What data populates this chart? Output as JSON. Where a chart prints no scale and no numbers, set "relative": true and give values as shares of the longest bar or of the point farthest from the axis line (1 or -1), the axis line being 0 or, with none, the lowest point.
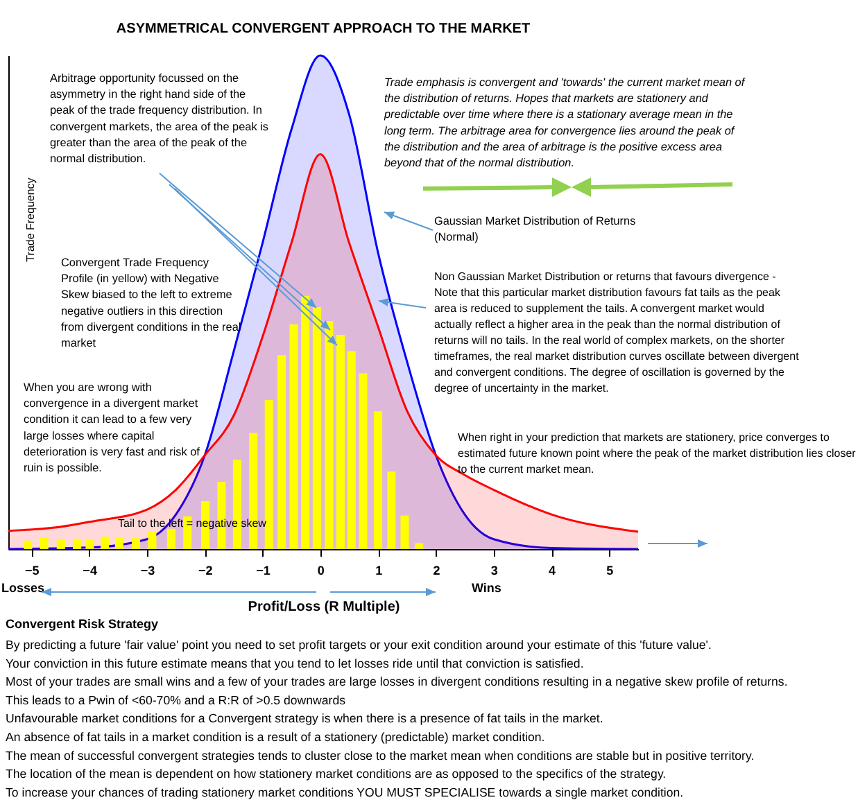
{
  "chart_data": {
    "type": "area",
    "title": "ASYMMETRICAL CONVERGENT APPROACH TO THE MARKET",
    "xlabel": "Profit/Loss (R Multiple)",
    "ylabel": "Trade Frequency",
    "relative": true,
    "grid": false,
    "xlim": [
      -5.4,
      5.5
    ],
    "xticks": [
      -5,
      -4,
      -3,
      -2,
      -1,
      0,
      1,
      2,
      3,
      4,
      5
    ],
    "series": [
      {
        "color": "#0000ff",
        "x": [
          -5.4,
          -4,
          -3,
          -2.5,
          -2,
          -1.5,
          -1,
          -0.5,
          0,
          0.5,
          1,
          1.5,
          2,
          2.5,
          3,
          4,
          5.5
        ],
        "values": [
          0,
          0.003,
          0.02,
          0.07,
          0.19,
          0.4,
          0.62,
          0.85,
          1,
          0.88,
          0.6,
          0.38,
          0.19,
          0.07,
          0.02,
          0.002,
          0
        ]
      },
      {
        "color": "#ff0000",
        "x": [
          -5.4,
          -4.5,
          -4,
          -3,
          -2.5,
          -2,
          -1.5,
          -1,
          -0.5,
          0,
          0.5,
          1,
          1.5,
          2,
          2.5,
          3,
          4,
          5.5
        ],
        "values": [
          0.037,
          0.045,
          0.055,
          0.08,
          0.12,
          0.19,
          0.27,
          0.43,
          0.62,
          0.8,
          0.62,
          0.45,
          0.28,
          0.19,
          0.15,
          0.12,
          0.07,
          0.035
        ]
      },
      {
        "type": "bar",
        "color": "#ffff00",
        "x": [
          -5.06,
          -4.78,
          -4.49,
          -4.21,
          -3.99,
          -3.73,
          -3.48,
          -3.19,
          -2.91,
          -2.58,
          -2.3,
          -1.99,
          -1.71,
          -1.44,
          -1.16,
          -0.89,
          -0.67,
          -0.46,
          -0.26,
          -0.06,
          0.15,
          0.35,
          0.54,
          0.74,
          1,
          1.23,
          1.46,
          1.71
        ],
        "values": [
          0.017,
          0.024,
          0.019,
          0.021,
          0.02,
          0.025,
          0.024,
          0.022,
          0.036,
          0.041,
          0.066,
          0.097,
          0.136,
          0.181,
          0.235,
          0.302,
          0.393,
          0.455,
          0.513,
          0.49,
          0.462,
          0.434,
          0.401,
          0.356,
          0.279,
          0.157,
          0.068,
          0.012
        ]
      }
    ],
    "annotations": [
      "Arbitrage opportunity focussed on the asymmetry in the right hand side of the peak of the trade frequency distribution. In convergent markets, the area of the peak is greater than the area of the peak of the normal distribution.",
      "Trade emphasis is convergent and 'towards' the current market mean of the distribution of returns. Hopes that markets are stationery and predictable over time where there is a stationary average mean in the long term. The arbitrage area for convergence lies around the peak of the distribution and the area of arbitrage is the positive excess area beyond that of the normal distribution.",
      "Gaussian Market Distribution of Returns (Normal)",
      "Convergent Trade Frequency Profile (in yellow) with Negative Skew biased to the left to extreme negative outliers in this direction from divergent conditions in the real market",
      "Non Gaussian Market Distribution or returns that favours divergence  - Note that this particular market distribution favours fat tails as the peak area is reduced to supplement the tails. A convergent market would actually reflect a higher area in the peak than the normal distribution of returns will no tails.  In the real world of complex markets, on the shorter timeframes, the real market distribution curves oscillate between divergent and convergent conditions. The degree of oscillation is governed by the degree of uncertainty in the market.",
      "When you are wrong with convergence in a divergent market condition it can lead to a few very large losses where capital deterioration is very fast and risk of ruin is possible.",
      "When right in your prediction that markets are stationery,  price converges to estimated future known point where the peak of the market distribution lies closer to the current market mean.",
      "Tail to the left  = negative skew",
      "Losses",
      "Wins",
      "Convergent Risk Strategy",
      "By predicting a future 'fair value' point you need to set profit targets or your exit condition around your estimate of this 'future value'.",
      "Your conviction in this future estimate means that you tend to let losses ride until that conviction is satisfied.",
      "Most of your trades are small wins and a few of your trades are large losses in divergent conditions resulting in a negative skew profile of returns.",
      "This leads to a Pwin of <60-70% and a R:R of >0.5 downwards",
      "Unfavourable market conditions for a Convergent strategy is when there is a presence of fat tails in the market.",
      "An absence of fat tails in a market condition is a result of a stationery (predictable) market condition.",
      "The mean of successful convergent strategies tends to cluster close to the market mean when conditions are stable but in positive territory.",
      "The location of the mean is dependent on how stationery market conditions are as opposed to the specifics of the strategy.",
      "To increase your chances of trading stationery market conditions YOU MUST SPECIALISE towards a single market condition."
    ]
  }
}
